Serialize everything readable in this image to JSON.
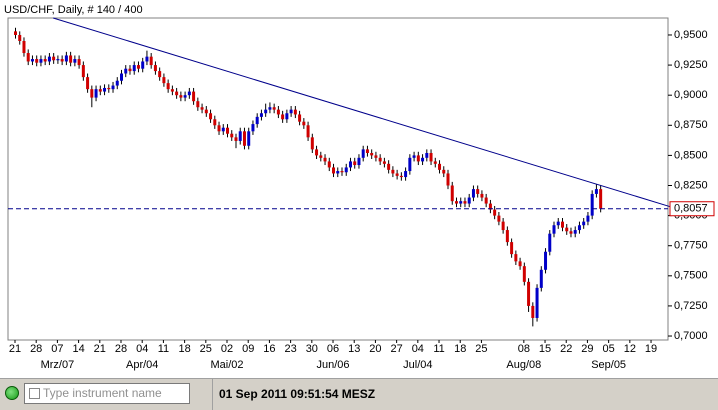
{
  "chart_data": {
    "type": "candlestick",
    "title": "USD/CHF, Daily, # 140 / 400",
    "up_color": "#0000c8",
    "down_color": "#d00000",
    "open": [
      0.953,
      0.95,
      0.945,
      0.935,
      0.928,
      0.93,
      0.927,
      0.93,
      0.928,
      0.932,
      0.929,
      0.93,
      0.928,
      0.933,
      0.927,
      0.93,
      0.925,
      0.915,
      0.905,
      0.898,
      0.905,
      0.903,
      0.906,
      0.905,
      0.908,
      0.912,
      0.918,
      0.922,
      0.92,
      0.925,
      0.922,
      0.928,
      0.932,
      0.925,
      0.92,
      0.915,
      0.91,
      0.905,
      0.903,
      0.9,
      0.898,
      0.9,
      0.903,
      0.895,
      0.89,
      0.888,
      0.885,
      0.88,
      0.875,
      0.87,
      0.873,
      0.868,
      0.865,
      0.862,
      0.87,
      0.858,
      0.87,
      0.876,
      0.882,
      0.885,
      0.888,
      0.89,
      0.888,
      0.884,
      0.88,
      0.885,
      0.888,
      0.884,
      0.878,
      0.875,
      0.865,
      0.855,
      0.85,
      0.848,
      0.845,
      0.84,
      0.835,
      0.837,
      0.836,
      0.84,
      0.845,
      0.842,
      0.848,
      0.855,
      0.852,
      0.85,
      0.848,
      0.845,
      0.843,
      0.838,
      0.835,
      0.833,
      0.832,
      0.837,
      0.848,
      0.85,
      0.845,
      0.848,
      0.852,
      0.845,
      0.843,
      0.838,
      0.835,
      0.825,
      0.812,
      0.81,
      0.812,
      0.81,
      0.815,
      0.822,
      0.818,
      0.815,
      0.81,
      0.805,
      0.8,
      0.795,
      0.788,
      0.778,
      0.768,
      0.762,
      0.758,
      0.745,
      0.725,
      0.715,
      0.74,
      0.755,
      0.77,
      0.785,
      0.792,
      0.795,
      0.79,
      0.787,
      0.785,
      0.788,
      0.792,
      0.795,
      0.8,
      0.818,
      0.822
    ],
    "high": [
      0.956,
      0.953,
      0.948,
      0.938,
      0.933,
      0.933,
      0.933,
      0.933,
      0.935,
      0.935,
      0.933,
      0.933,
      0.936,
      0.936,
      0.933,
      0.933,
      0.928,
      0.918,
      0.908,
      0.908,
      0.908,
      0.909,
      0.909,
      0.911,
      0.915,
      0.921,
      0.925,
      0.925,
      0.928,
      0.928,
      0.931,
      0.937,
      0.935,
      0.928,
      0.923,
      0.918,
      0.913,
      0.908,
      0.906,
      0.903,
      0.903,
      0.906,
      0.906,
      0.898,
      0.893,
      0.891,
      0.888,
      0.883,
      0.878,
      0.876,
      0.876,
      0.871,
      0.868,
      0.873,
      0.873,
      0.873,
      0.879,
      0.885,
      0.888,
      0.893,
      0.894,
      0.893,
      0.891,
      0.887,
      0.888,
      0.891,
      0.891,
      0.887,
      0.881,
      0.878,
      0.868,
      0.858,
      0.853,
      0.851,
      0.848,
      0.843,
      0.84,
      0.84,
      0.843,
      0.848,
      0.848,
      0.851,
      0.858,
      0.858,
      0.855,
      0.853,
      0.851,
      0.848,
      0.846,
      0.841,
      0.838,
      0.836,
      0.84,
      0.851,
      0.853,
      0.853,
      0.851,
      0.855,
      0.855,
      0.848,
      0.846,
      0.841,
      0.838,
      0.828,
      0.815,
      0.815,
      0.815,
      0.818,
      0.825,
      0.825,
      0.821,
      0.818,
      0.813,
      0.808,
      0.803,
      0.798,
      0.791,
      0.781,
      0.771,
      0.765,
      0.761,
      0.748,
      0.728,
      0.743,
      0.758,
      0.773,
      0.788,
      0.795,
      0.798,
      0.798,
      0.793,
      0.79,
      0.791,
      0.795,
      0.798,
      0.803,
      0.821,
      0.826,
      0.825
    ],
    "low": [
      0.947,
      0.942,
      0.932,
      0.925,
      0.925,
      0.924,
      0.924,
      0.925,
      0.925,
      0.926,
      0.926,
      0.925,
      0.925,
      0.924,
      0.924,
      0.922,
      0.912,
      0.902,
      0.89,
      0.895,
      0.9,
      0.9,
      0.902,
      0.902,
      0.905,
      0.909,
      0.915,
      0.917,
      0.917,
      0.919,
      0.919,
      0.925,
      0.922,
      0.917,
      0.912,
      0.907,
      0.902,
      0.9,
      0.897,
      0.895,
      0.895,
      0.897,
      0.892,
      0.887,
      0.885,
      0.882,
      0.877,
      0.872,
      0.867,
      0.867,
      0.865,
      0.862,
      0.856,
      0.859,
      0.855,
      0.855,
      0.867,
      0.873,
      0.879,
      0.882,
      0.885,
      0.885,
      0.881,
      0.877,
      0.877,
      0.882,
      0.881,
      0.875,
      0.872,
      0.862,
      0.852,
      0.847,
      0.845,
      0.842,
      0.837,
      0.832,
      0.832,
      0.833,
      0.833,
      0.837,
      0.839,
      0.839,
      0.845,
      0.849,
      0.847,
      0.845,
      0.842,
      0.84,
      0.835,
      0.832,
      0.83,
      0.829,
      0.829,
      0.834,
      0.845,
      0.842,
      0.842,
      0.845,
      0.842,
      0.84,
      0.835,
      0.832,
      0.822,
      0.809,
      0.807,
      0.807,
      0.807,
      0.807,
      0.812,
      0.815,
      0.812,
      0.807,
      0.802,
      0.797,
      0.792,
      0.785,
      0.775,
      0.765,
      0.759,
      0.755,
      0.742,
      0.72,
      0.708,
      0.712,
      0.737,
      0.752,
      0.767,
      0.782,
      0.789,
      0.787,
      0.784,
      0.782,
      0.782,
      0.785,
      0.789,
      0.792,
      0.797,
      0.815,
      0.8027
    ],
    "close": [
      0.95,
      0.945,
      0.935,
      0.928,
      0.93,
      0.927,
      0.93,
      0.928,
      0.932,
      0.929,
      0.93,
      0.928,
      0.933,
      0.927,
      0.93,
      0.925,
      0.915,
      0.905,
      0.898,
      0.905,
      0.903,
      0.906,
      0.905,
      0.908,
      0.912,
      0.918,
      0.922,
      0.92,
      0.925,
      0.922,
      0.928,
      0.932,
      0.925,
      0.92,
      0.915,
      0.91,
      0.905,
      0.903,
      0.9,
      0.898,
      0.9,
      0.903,
      0.895,
      0.89,
      0.888,
      0.885,
      0.88,
      0.875,
      0.87,
      0.873,
      0.868,
      0.865,
      0.862,
      0.87,
      0.858,
      0.87,
      0.876,
      0.882,
      0.885,
      0.888,
      0.89,
      0.888,
      0.884,
      0.88,
      0.885,
      0.888,
      0.884,
      0.878,
      0.875,
      0.865,
      0.855,
      0.85,
      0.848,
      0.845,
      0.84,
      0.835,
      0.837,
      0.836,
      0.84,
      0.845,
      0.842,
      0.848,
      0.855,
      0.852,
      0.85,
      0.848,
      0.845,
      0.843,
      0.838,
      0.835,
      0.833,
      0.832,
      0.837,
      0.848,
      0.85,
      0.845,
      0.848,
      0.852,
      0.845,
      0.843,
      0.838,
      0.835,
      0.825,
      0.812,
      0.81,
      0.812,
      0.81,
      0.815,
      0.822,
      0.818,
      0.815,
      0.81,
      0.805,
      0.8,
      0.795,
      0.788,
      0.778,
      0.768,
      0.762,
      0.758,
      0.745,
      0.725,
      0.715,
      0.74,
      0.755,
      0.77,
      0.785,
      0.792,
      0.795,
      0.79,
      0.787,
      0.785,
      0.788,
      0.792,
      0.795,
      0.8,
      0.818,
      0.822,
      0.8057
    ],
    "xlim": [
      -1.65,
      154
    ],
    "xticks": [
      {
        "value": 0,
        "label": "21"
      },
      {
        "value": 5,
        "label": "28"
      },
      {
        "value": 10,
        "label": "07"
      },
      {
        "value": 15,
        "label": "14"
      },
      {
        "value": 20,
        "label": "21"
      },
      {
        "value": 25,
        "label": "28"
      },
      {
        "value": 30,
        "label": "04"
      },
      {
        "value": 35,
        "label": "11"
      },
      {
        "value": 40,
        "label": "18"
      },
      {
        "value": 45,
        "label": "25"
      },
      {
        "value": 50,
        "label": "02"
      },
      {
        "value": 55,
        "label": "09"
      },
      {
        "value": 60,
        "label": "16"
      },
      {
        "value": 65,
        "label": "23"
      },
      {
        "value": 70,
        "label": "30"
      },
      {
        "value": 75,
        "label": "06"
      },
      {
        "value": 80,
        "label": "13"
      },
      {
        "value": 85,
        "label": "20"
      },
      {
        "value": 90,
        "label": "27"
      },
      {
        "value": 95,
        "label": "04"
      },
      {
        "value": 100,
        "label": "11"
      },
      {
        "value": 105,
        "label": "18"
      },
      {
        "value": 110,
        "label": "25"
      },
      {
        "value": 120,
        "label": "08"
      },
      {
        "value": 125,
        "label": "15"
      },
      {
        "value": 130,
        "label": "22"
      },
      {
        "value": 135,
        "label": "29"
      },
      {
        "value": 140,
        "label": "05"
      },
      {
        "value": 145,
        "label": "12"
      },
      {
        "value": 150,
        "label": "19"
      }
    ],
    "month_ticks": [
      {
        "value": 10,
        "label": "Mrz/07"
      },
      {
        "value": 30,
        "label": "Apr/04"
      },
      {
        "value": 50,
        "label": "Mai/02"
      },
      {
        "value": 75,
        "label": "Jun/06"
      },
      {
        "value": 95,
        "label": "Jul/04"
      },
      {
        "value": 120,
        "label": "Aug/08"
      },
      {
        "value": 140,
        "label": "Sep/05"
      }
    ],
    "ylim": [
      0.6967,
      0.9641
    ],
    "yticks": [
      {
        "value": 0.7,
        "label": "0,7000"
      },
      {
        "value": 0.725,
        "label": "0,7250"
      },
      {
        "value": 0.75,
        "label": "0,7500"
      },
      {
        "value": 0.775,
        "label": "0,7750"
      },
      {
        "value": 0.8,
        "label": "0,8000"
      },
      {
        "value": 0.825,
        "label": "0,8250"
      },
      {
        "value": 0.85,
        "label": "0,8500"
      },
      {
        "value": 0.875,
        "label": "0,8750"
      },
      {
        "value": 0.9,
        "label": "0,9000"
      },
      {
        "value": 0.925,
        "label": "0,9250"
      },
      {
        "value": 0.95,
        "label": "0,9500"
      }
    ],
    "trendline": {
      "x": [
        9,
        154.7
      ],
      "values": [
        0.9641,
        0.8072
      ],
      "color": "#00008b"
    },
    "last_price": {
      "value": 0.8057,
      "label": "0,8057",
      "color": "#00008b"
    }
  },
  "toolbar": {
    "placeholder": "Type instrument name",
    "datetime": "01 Sep 2011 09:51:54 MESZ"
  }
}
